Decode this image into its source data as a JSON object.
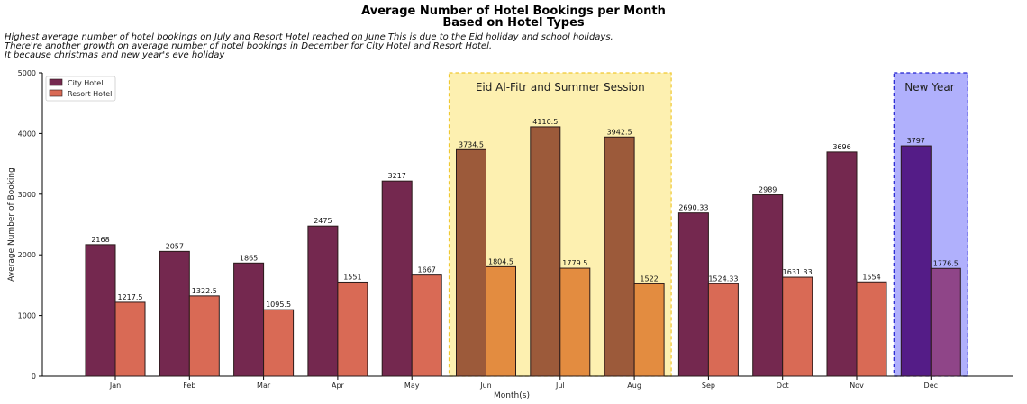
{
  "chart_data": {
    "type": "bar",
    "title_line1": "Average Number of Hotel Bookings per Month",
    "title_line2": "Based on Hotel Types",
    "subtitle_lines": [
      "Highest average number of hotel bookings on July and Resort Hotel reached on June This is due to the Eid holiday and school holidays.",
      "There're another growth on average number of hotel bookings in December for City Hotel and Resort Hotel.",
      "It because christmas and new year's eve holiday"
    ],
    "xlabel": "Month(s)",
    "ylabel": "Average Number of Booking",
    "ylim": [
      0,
      5000
    ],
    "yticks": [
      0,
      1000,
      2000,
      3000,
      4000,
      5000
    ],
    "categories": [
      "Jan",
      "Feb",
      "Mar",
      "Apr",
      "May",
      "Jun",
      "Jul",
      "Aug",
      "Sep",
      "Oct",
      "Nov",
      "Dec"
    ],
    "series": [
      {
        "name": "City Hotel",
        "color": "#74284f",
        "values": [
          2168,
          2057,
          1865,
          2475,
          3217,
          3734.5,
          4110.5,
          3942.5,
          2690.33,
          2989,
          3696,
          3797
        ],
        "labels": [
          "2168",
          "2057",
          "1865",
          "2475",
          "3217",
          "3734.5",
          "4110.5",
          "3942.5",
          "2690.33",
          "2989",
          "3696",
          "3797"
        ]
      },
      {
        "name": "Resort Hotel",
        "color": "#d96a55",
        "values": [
          1217.5,
          1322.5,
          1095.5,
          1551,
          1667,
          1804.5,
          1779.5,
          1522,
          1524.33,
          1631.33,
          1554,
          1776.5
        ],
        "labels": [
          "1217.5",
          "1322.5",
          "1095.5",
          "1551",
          "1667",
          "1804.5",
          "1779.5",
          "1522",
          "1524.33",
          "1631.33",
          "1554",
          "1776.5"
        ]
      }
    ],
    "highlight_colors": {
      "summer": {
        "City Hotel": "#9c5a3a",
        "Resort Hotel": "#e38c40"
      },
      "newyear": {
        "City Hotel": "#541c87",
        "Resort Hotel": "#8f4588"
      }
    },
    "annotations": [
      {
        "text": "Eid Al-Fitr and Summer Session",
        "from": "Jun",
        "to": "Aug",
        "fill": "#fdf0b0",
        "edge": "#f0c830",
        "key": "summer"
      },
      {
        "text": "New Year",
        "from": "Dec",
        "to": "Dec",
        "fill": "#b0b0fc",
        "edge": "#2020d0",
        "key": "newyear"
      }
    ],
    "legend": "top-left",
    "grid": false
  }
}
